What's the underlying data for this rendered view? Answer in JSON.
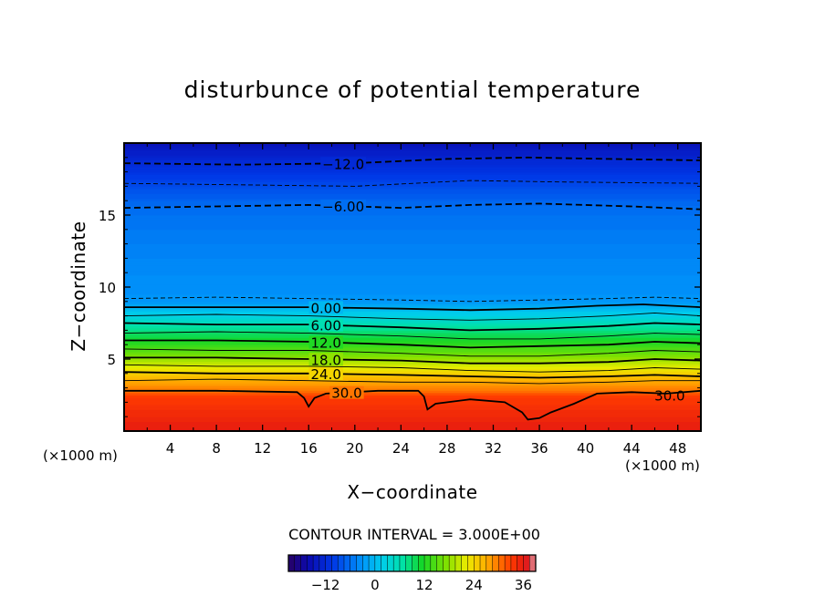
{
  "chart_data": {
    "type": "heatmap",
    "title": "disturbunce of potential temperature",
    "xlabel": "X−coordinate",
    "ylabel": "Z−coordinate",
    "x_unit_label": "(×1000 m)",
    "y_unit_label": "(×1000 m)",
    "xlim": [
      0,
      50
    ],
    "ylim": [
      0,
      20
    ],
    "x_ticks": [
      4,
      8,
      12,
      16,
      20,
      24,
      28,
      32,
      36,
      40,
      44,
      48
    ],
    "y_ticks": [
      5,
      10,
      15
    ],
    "grid": false,
    "contour_interval_text": "CONTOUR INTERVAL = 3.000E+00",
    "colorbar": {
      "range": [
        -21,
        39
      ],
      "ticks": [
        -12,
        0,
        12,
        24,
        36
      ],
      "tick_labels": [
        "−12",
        "0",
        "12",
        "24",
        "36"
      ],
      "placement": "bottom"
    },
    "field_profile": [
      {
        "z": 0.0,
        "value": 36
      },
      {
        "z": 2.5,
        "value": 33
      },
      {
        "z": 2.8,
        "value": 30
      },
      {
        "z": 3.5,
        "value": 27
      },
      {
        "z": 4.1,
        "value": 24
      },
      {
        "z": 4.6,
        "value": 21
      },
      {
        "z": 5.1,
        "value": 18
      },
      {
        "z": 5.6,
        "value": 15
      },
      {
        "z": 6.2,
        "value": 12
      },
      {
        "z": 6.8,
        "value": 9
      },
      {
        "z": 7.4,
        "value": 6
      },
      {
        "z": 7.9,
        "value": 3
      },
      {
        "z": 8.5,
        "value": 0
      },
      {
        "z": 9.0,
        "value": -3
      },
      {
        "z": 12.5,
        "value": -4.5
      },
      {
        "z": 15.5,
        "value": -6
      },
      {
        "z": 17.2,
        "value": -9
      },
      {
        "z": 18.7,
        "value": -12
      },
      {
        "z": 20.0,
        "value": -15
      }
    ],
    "contours": [
      {
        "level": -12,
        "label": "−12.0",
        "style": "dashed",
        "bold": true,
        "label_x": 19.0,
        "points": [
          [
            0,
            18.6
          ],
          [
            10,
            18.5
          ],
          [
            20,
            18.6
          ],
          [
            28,
            18.9
          ],
          [
            35,
            19.0
          ],
          [
            42,
            18.9
          ],
          [
            50,
            18.8
          ]
        ]
      },
      {
        "level": -9,
        "label": "",
        "style": "dashed",
        "bold": false,
        "points": [
          [
            0,
            17.2
          ],
          [
            10,
            17.1
          ],
          [
            20,
            17.0
          ],
          [
            30,
            17.4
          ],
          [
            38,
            17.3
          ],
          [
            50,
            17.2
          ]
        ]
      },
      {
        "level": -6,
        "label": "−6.00",
        "style": "dashed",
        "bold": true,
        "label_x": 19.0,
        "points": [
          [
            0,
            15.5
          ],
          [
            8,
            15.6
          ],
          [
            16,
            15.7
          ],
          [
            24,
            15.5
          ],
          [
            30,
            15.7
          ],
          [
            36,
            15.8
          ],
          [
            44,
            15.6
          ],
          [
            50,
            15.4
          ]
        ]
      },
      {
        "level": -3,
        "label": "",
        "style": "dashed",
        "bold": false,
        "points": [
          [
            0,
            9.2
          ],
          [
            8,
            9.3
          ],
          [
            16,
            9.2
          ],
          [
            24,
            9.1
          ],
          [
            30,
            9.0
          ],
          [
            36,
            9.1
          ],
          [
            42,
            9.2
          ],
          [
            46,
            9.3
          ],
          [
            50,
            9.2
          ]
        ]
      },
      {
        "level": 0,
        "label": "0.00",
        "style": "solid",
        "bold": true,
        "label_x": 17.5,
        "points": [
          [
            0,
            8.6
          ],
          [
            8,
            8.6
          ],
          [
            16,
            8.6
          ],
          [
            24,
            8.5
          ],
          [
            30,
            8.4
          ],
          [
            36,
            8.5
          ],
          [
            41,
            8.7
          ],
          [
            45,
            8.8
          ],
          [
            50,
            8.6
          ]
        ]
      },
      {
        "level": 3,
        "label": "",
        "style": "solid",
        "bold": false,
        "points": [
          [
            0,
            8.0
          ],
          [
            8,
            8.1
          ],
          [
            16,
            8.0
          ],
          [
            24,
            7.8
          ],
          [
            30,
            7.7
          ],
          [
            36,
            7.8
          ],
          [
            42,
            8.0
          ],
          [
            46,
            8.2
          ],
          [
            50,
            8.0
          ]
        ]
      },
      {
        "level": 6,
        "label": "6.00",
        "style": "solid",
        "bold": true,
        "label_x": 17.5,
        "points": [
          [
            0,
            7.5
          ],
          [
            8,
            7.4
          ],
          [
            16,
            7.4
          ],
          [
            24,
            7.2
          ],
          [
            30,
            7.0
          ],
          [
            36,
            7.1
          ],
          [
            42,
            7.3
          ],
          [
            46,
            7.5
          ],
          [
            50,
            7.4
          ]
        ]
      },
      {
        "level": 9,
        "label": "",
        "style": "solid",
        "bold": false,
        "points": [
          [
            0,
            6.8
          ],
          [
            8,
            6.9
          ],
          [
            16,
            6.8
          ],
          [
            24,
            6.6
          ],
          [
            30,
            6.4
          ],
          [
            36,
            6.4
          ],
          [
            42,
            6.6
          ],
          [
            46,
            6.8
          ],
          [
            50,
            6.7
          ]
        ]
      },
      {
        "level": 12,
        "label": "12.0",
        "style": "solid",
        "bold": true,
        "label_x": 17.5,
        "points": [
          [
            0,
            6.3
          ],
          [
            8,
            6.3
          ],
          [
            16,
            6.2
          ],
          [
            24,
            6.0
          ],
          [
            30,
            5.8
          ],
          [
            36,
            5.9
          ],
          [
            42,
            6.0
          ],
          [
            46,
            6.2
          ],
          [
            50,
            6.1
          ]
        ]
      },
      {
        "level": 15,
        "label": "",
        "style": "solid",
        "bold": false,
        "points": [
          [
            0,
            5.7
          ],
          [
            8,
            5.6
          ],
          [
            16,
            5.6
          ],
          [
            24,
            5.4
          ],
          [
            30,
            5.2
          ],
          [
            36,
            5.2
          ],
          [
            42,
            5.4
          ],
          [
            46,
            5.6
          ],
          [
            50,
            5.5
          ]
        ]
      },
      {
        "level": 18,
        "label": "18.0",
        "style": "solid",
        "bold": true,
        "label_x": 17.5,
        "points": [
          [
            0,
            5.1
          ],
          [
            8,
            5.1
          ],
          [
            16,
            5.0
          ],
          [
            24,
            4.9
          ],
          [
            30,
            4.7
          ],
          [
            36,
            4.7
          ],
          [
            42,
            4.8
          ],
          [
            46,
            5.0
          ],
          [
            50,
            4.9
          ]
        ]
      },
      {
        "level": 21,
        "label": "",
        "style": "solid",
        "bold": false,
        "points": [
          [
            0,
            4.6
          ],
          [
            8,
            4.5
          ],
          [
            16,
            4.5
          ],
          [
            24,
            4.4
          ],
          [
            30,
            4.2
          ],
          [
            36,
            4.1
          ],
          [
            42,
            4.2
          ],
          [
            46,
            4.4
          ],
          [
            50,
            4.3
          ]
        ]
      },
      {
        "level": 24,
        "label": "24.0",
        "style": "solid",
        "bold": true,
        "label_x": 17.5,
        "points": [
          [
            0,
            4.1
          ],
          [
            8,
            4.0
          ],
          [
            16,
            4.0
          ],
          [
            24,
            3.9
          ],
          [
            30,
            3.8
          ],
          [
            36,
            3.7
          ],
          [
            42,
            3.8
          ],
          [
            46,
            3.9
          ],
          [
            50,
            3.8
          ]
        ]
      },
      {
        "level": 27,
        "label": "",
        "style": "solid",
        "bold": false,
        "points": [
          [
            0,
            3.5
          ],
          [
            8,
            3.6
          ],
          [
            16,
            3.5
          ],
          [
            24,
            3.4
          ],
          [
            30,
            3.4
          ],
          [
            36,
            3.3
          ],
          [
            42,
            3.4
          ],
          [
            46,
            3.5
          ],
          [
            50,
            3.5
          ]
        ]
      },
      {
        "level": 30,
        "label": "30.0",
        "style": "solid",
        "bold": true,
        "label_x": 19.3,
        "points": [
          [
            0,
            2.8
          ],
          [
            8,
            2.8
          ],
          [
            15,
            2.7
          ],
          [
            15.6,
            2.3
          ],
          [
            16,
            1.7
          ],
          [
            16.5,
            2.3
          ],
          [
            17.5,
            2.6
          ],
          [
            22,
            2.8
          ],
          [
            25.5,
            2.8
          ],
          [
            26,
            2.4
          ],
          [
            26.3,
            1.5
          ],
          [
            27,
            1.9
          ],
          [
            30,
            2.2
          ],
          [
            33,
            2.0
          ],
          [
            34.5,
            1.3
          ],
          [
            35,
            0.8
          ],
          [
            36,
            0.9
          ],
          [
            37,
            1.3
          ],
          [
            39,
            1.9
          ],
          [
            41,
            2.6
          ],
          [
            44,
            2.7
          ],
          [
            47,
            2.6
          ],
          [
            50,
            2.8
          ]
        ]
      }
    ],
    "extra_label": {
      "text": "30.0",
      "x": 47.3,
      "z": 2.5
    }
  }
}
